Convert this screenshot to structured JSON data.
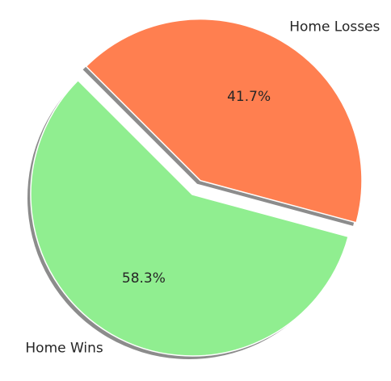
{
  "chart_data": {
    "type": "pie",
    "title": "",
    "slices": [
      {
        "label": "Home Wins",
        "value": 58.3,
        "pct_label": "58.3%",
        "color": "#90ee90",
        "exploded": false
      },
      {
        "label": "Home Losses",
        "value": 41.7,
        "pct_label": "41.7%",
        "color": "#ff7f50",
        "exploded": true
      }
    ],
    "shadow": true,
    "shadow_color": "#808080",
    "edge_color": "#ffffff",
    "legend": "none"
  }
}
